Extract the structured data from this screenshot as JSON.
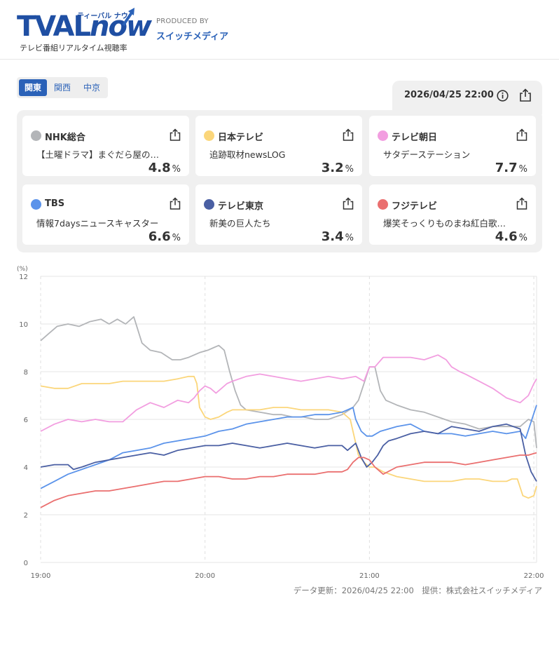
{
  "header": {
    "logo_main": "TVAL",
    "logo_now": "now",
    "logo_kana": "ティーバル ナウ",
    "logo_sub": "テレビ番組リアルタイム視聴率",
    "produced_by": "PRODUCED BY",
    "producer": "スイッチメディア"
  },
  "tabs": [
    {
      "label": "関東",
      "active": true
    },
    {
      "label": "関西",
      "active": false
    },
    {
      "label": "中京",
      "active": false
    }
  ],
  "datetime": "2026/04/25 22:00",
  "channels": [
    {
      "name": "NHK総合",
      "program": "【土曜ドラマ】まぐだら屋の…",
      "rating": "4.8",
      "unit": "%",
      "color": "#b3b5b8"
    },
    {
      "name": "日本テレビ",
      "program": "追跡取材newsLOG",
      "rating": "3.2",
      "unit": "%",
      "color": "#fbd67a"
    },
    {
      "name": "テレビ朝日",
      "program": "サタデーステーション",
      "rating": "7.7",
      "unit": "%",
      "color": "#f29ee0"
    },
    {
      "name": "TBS",
      "program": "情報7daysニュースキャスター",
      "rating": "6.6",
      "unit": "%",
      "color": "#5b93ea"
    },
    {
      "name": "テレビ東京",
      "program": "新美の巨人たち",
      "rating": "3.4",
      "unit": "%",
      "color": "#4a5fa3"
    },
    {
      "name": "フジテレビ",
      "program": "爆笑そっくりものまね紅白歌…",
      "rating": "4.6",
      "unit": "%",
      "color": "#ea6f6f"
    }
  ],
  "footer": "データ更新：2026/04/25 22:00　提供：株式会社スイッチメディア",
  "chart_data": {
    "type": "line",
    "ylabel": "(%)",
    "ylim": [
      0,
      12
    ],
    "yticks": [
      0,
      2,
      4,
      6,
      8,
      10,
      12
    ],
    "xlim": [
      0,
      181
    ],
    "xticks": [
      {
        "value": 0,
        "label": "19:00"
      },
      {
        "value": 60,
        "label": "20:00"
      },
      {
        "value": 120,
        "label": "21:00"
      },
      {
        "value": 180,
        "label": "22:00"
      }
    ],
    "x_unit": "minutes after 19:00",
    "grid": true,
    "series": [
      {
        "name": "NHK総合",
        "color": "#b3b5b8",
        "x": [
          0,
          3,
          6,
          10,
          14,
          18,
          22,
          25,
          28,
          31,
          34,
          37,
          40,
          44,
          48,
          51,
          54,
          58,
          61,
          63,
          65,
          67,
          69,
          71,
          73,
          75,
          80,
          85,
          88,
          92,
          96,
          100,
          105,
          110,
          114,
          116,
          118,
          120,
          122,
          124,
          126,
          130,
          135,
          140,
          145,
          150,
          155,
          160,
          165,
          170,
          175,
          178,
          180,
          181
        ],
        "y": [
          9.3,
          9.6,
          9.9,
          10.0,
          9.9,
          10.1,
          10.2,
          10.0,
          10.2,
          10.0,
          10.3,
          9.2,
          8.9,
          8.8,
          8.5,
          8.5,
          8.6,
          8.8,
          8.9,
          9.0,
          9.1,
          8.9,
          8.0,
          7.2,
          6.6,
          6.4,
          6.3,
          6.2,
          6.2,
          6.1,
          6.1,
          6.0,
          6.0,
          6.2,
          6.5,
          6.8,
          7.5,
          8.2,
          8.2,
          7.2,
          6.8,
          6.6,
          6.4,
          6.3,
          6.1,
          5.9,
          5.8,
          5.6,
          5.7,
          5.7,
          5.7,
          6.0,
          5.9,
          4.8
        ]
      },
      {
        "name": "日本テレビ",
        "color": "#fbd67a",
        "x": [
          0,
          5,
          10,
          15,
          20,
          25,
          30,
          35,
          40,
          45,
          50,
          54,
          56,
          57,
          58,
          60,
          62,
          65,
          68,
          70,
          75,
          80,
          85,
          90,
          95,
          100,
          105,
          110,
          113,
          115,
          116,
          118,
          120,
          122,
          125,
          130,
          135,
          140,
          145,
          150,
          155,
          160,
          165,
          170,
          172,
          174,
          176,
          178,
          180,
          181
        ],
        "y": [
          7.4,
          7.3,
          7.3,
          7.5,
          7.5,
          7.5,
          7.6,
          7.6,
          7.6,
          7.6,
          7.7,
          7.8,
          7.8,
          7.5,
          6.5,
          6.1,
          6.0,
          6.1,
          6.3,
          6.4,
          6.4,
          6.4,
          6.5,
          6.5,
          6.4,
          6.4,
          6.4,
          6.3,
          6.0,
          5.0,
          4.5,
          4.2,
          4.0,
          4.0,
          3.8,
          3.6,
          3.5,
          3.4,
          3.4,
          3.4,
          3.5,
          3.5,
          3.4,
          3.4,
          3.5,
          3.5,
          2.8,
          2.7,
          2.8,
          3.2
        ]
      },
      {
        "name": "テレビ朝日",
        "color": "#f29ee0",
        "x": [
          0,
          5,
          10,
          15,
          20,
          25,
          30,
          35,
          40,
          45,
          50,
          54,
          56,
          58,
          60,
          62,
          64,
          66,
          68,
          70,
          75,
          80,
          85,
          90,
          95,
          100,
          105,
          110,
          115,
          118,
          120,
          122,
          125,
          130,
          135,
          140,
          145,
          148,
          150,
          153,
          155,
          160,
          165,
          170,
          175,
          178,
          180,
          181
        ],
        "y": [
          5.5,
          5.8,
          6.0,
          5.9,
          6.0,
          5.9,
          5.9,
          6.4,
          6.7,
          6.5,
          6.8,
          6.7,
          6.9,
          7.2,
          7.4,
          7.3,
          7.1,
          7.3,
          7.5,
          7.6,
          7.8,
          7.9,
          7.8,
          7.7,
          7.6,
          7.7,
          7.8,
          7.7,
          7.8,
          7.6,
          8.2,
          8.2,
          8.6,
          8.6,
          8.6,
          8.5,
          8.7,
          8.5,
          8.2,
          8.0,
          7.9,
          7.6,
          7.3,
          6.9,
          6.7,
          7.0,
          7.5,
          7.7
        ]
      },
      {
        "name": "TBS",
        "color": "#5b93ea",
        "x": [
          0,
          5,
          10,
          15,
          20,
          25,
          30,
          35,
          40,
          45,
          50,
          55,
          60,
          65,
          70,
          75,
          80,
          85,
          90,
          95,
          100,
          105,
          110,
          112,
          114,
          115,
          117,
          119,
          121,
          124,
          127,
          130,
          135,
          140,
          145,
          150,
          155,
          160,
          165,
          170,
          175,
          177,
          179,
          181
        ],
        "y": [
          3.1,
          3.4,
          3.7,
          3.9,
          4.1,
          4.3,
          4.6,
          4.7,
          4.8,
          5.0,
          5.1,
          5.2,
          5.3,
          5.5,
          5.6,
          5.8,
          5.9,
          6.0,
          6.1,
          6.1,
          6.2,
          6.2,
          6.3,
          6.4,
          6.5,
          6.0,
          5.5,
          5.3,
          5.3,
          5.5,
          5.6,
          5.7,
          5.8,
          5.5,
          5.4,
          5.4,
          5.3,
          5.4,
          5.5,
          5.4,
          5.5,
          5.2,
          5.9,
          6.6
        ]
      },
      {
        "name": "テレビ東京",
        "color": "#4a5fa3",
        "x": [
          0,
          5,
          10,
          12,
          15,
          20,
          25,
          30,
          35,
          40,
          45,
          50,
          55,
          60,
          65,
          70,
          75,
          80,
          85,
          90,
          95,
          100,
          105,
          110,
          112,
          114,
          115,
          117,
          119,
          121,
          123,
          125,
          127,
          130,
          135,
          140,
          145,
          150,
          155,
          160,
          165,
          170,
          175,
          177,
          179,
          181
        ],
        "y": [
          4.0,
          4.1,
          4.1,
          3.9,
          4.0,
          4.2,
          4.3,
          4.4,
          4.5,
          4.6,
          4.5,
          4.7,
          4.8,
          4.9,
          4.9,
          5.0,
          4.9,
          4.8,
          4.9,
          5.0,
          4.9,
          4.8,
          4.9,
          4.9,
          4.7,
          4.9,
          5.0,
          4.4,
          4.0,
          4.2,
          4.5,
          4.9,
          5.1,
          5.2,
          5.4,
          5.5,
          5.4,
          5.7,
          5.6,
          5.5,
          5.7,
          5.8,
          5.6,
          4.5,
          3.8,
          3.4
        ]
      },
      {
        "name": "フジテレビ",
        "color": "#ea6f6f",
        "x": [
          0,
          5,
          10,
          15,
          20,
          25,
          30,
          35,
          40,
          45,
          50,
          55,
          60,
          65,
          70,
          75,
          80,
          85,
          90,
          95,
          100,
          105,
          110,
          112,
          114,
          116,
          118,
          120,
          122,
          125,
          130,
          135,
          140,
          145,
          150,
          155,
          160,
          165,
          170,
          175,
          178,
          181
        ],
        "y": [
          2.3,
          2.6,
          2.8,
          2.9,
          3.0,
          3.0,
          3.1,
          3.2,
          3.3,
          3.4,
          3.4,
          3.5,
          3.6,
          3.6,
          3.5,
          3.5,
          3.6,
          3.6,
          3.7,
          3.7,
          3.7,
          3.8,
          3.8,
          3.9,
          4.2,
          4.4,
          4.4,
          4.3,
          4.0,
          3.7,
          4.0,
          4.1,
          4.2,
          4.2,
          4.2,
          4.1,
          4.2,
          4.3,
          4.4,
          4.5,
          4.5,
          4.6
        ]
      }
    ]
  }
}
